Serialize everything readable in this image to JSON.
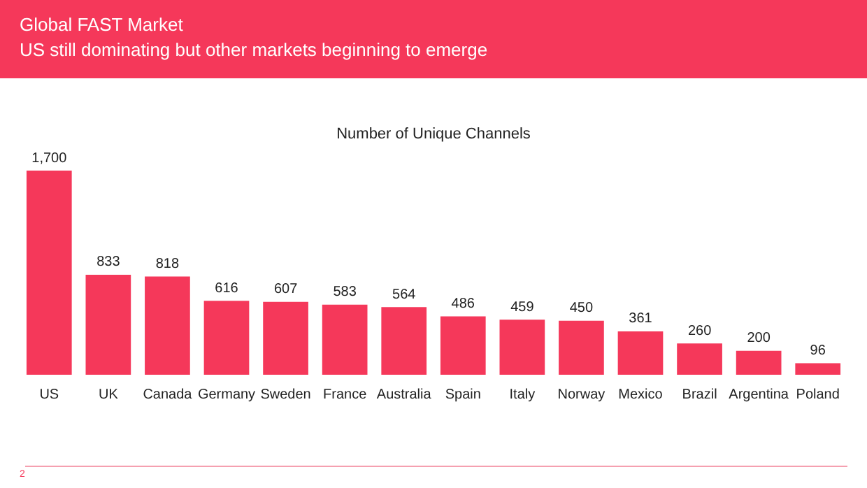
{
  "chart_data": {
    "type": "bar",
    "title": "Global FAST Market",
    "subtitle": "US still dominating but other markets beginning to emerge",
    "annotations": [
      "Number of Unique Channels",
      "2"
    ],
    "categories": [
      "US",
      "UK",
      "Canada",
      "Germany",
      "Sweden",
      "France",
      "Australia",
      "Spain",
      "Italy",
      "Norway",
      "Mexico",
      "Brazil",
      "Argentina",
      "Poland"
    ],
    "values": [
      1700,
      833,
      818,
      616,
      607,
      583,
      564,
      486,
      459,
      450,
      361,
      260,
      200,
      96
    ],
    "value_labels": [
      "1,700",
      "833",
      "818",
      "616",
      "607",
      "583",
      "564",
      "486",
      "459",
      "450",
      "361",
      "260",
      "200",
      "96"
    ],
    "color": "#f5385a",
    "grid": false,
    "legend": false
  }
}
